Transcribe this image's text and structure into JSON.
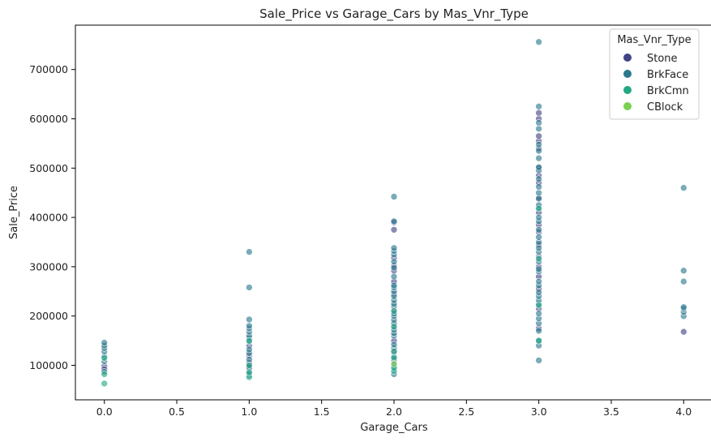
{
  "chart_data": {
    "type": "scatter",
    "title": "Sale_Price vs Garage_Cars by Mas_Vnr_Type",
    "xlabel": "Garage_Cars",
    "ylabel": "Sale_Price",
    "xlim": [
      -0.2,
      4.2
    ],
    "ylim": [
      30000,
      790000
    ],
    "xticks": [
      "0.0",
      "0.5",
      "1.0",
      "1.5",
      "2.0",
      "2.5",
      "3.0",
      "3.5",
      "4.0"
    ],
    "xtick_values": [
      0,
      0.5,
      1,
      1.5,
      2,
      2.5,
      3,
      3.5,
      4
    ],
    "yticks": [
      "100000",
      "200000",
      "300000",
      "400000",
      "500000",
      "600000",
      "700000"
    ],
    "ytick_values": [
      100000,
      200000,
      300000,
      400000,
      500000,
      600000,
      700000
    ],
    "grid": false,
    "legend": {
      "title": "Mas_Vnr_Type",
      "placement": "top-right"
    },
    "series": [
      {
        "name": "Stone",
        "color": "#414487",
        "points": [
          [
            0,
            98000
          ],
          [
            0,
            92000
          ],
          [
            1,
            105000
          ],
          [
            1,
            120000
          ],
          [
            1,
            140000
          ],
          [
            1,
            98000
          ],
          [
            2,
            110000
          ],
          [
            2,
            128000
          ],
          [
            2,
            150000
          ],
          [
            2,
            180000
          ],
          [
            2,
            212000
          ],
          [
            2,
            245000
          ],
          [
            2,
            270000
          ],
          [
            2,
            292000
          ],
          [
            2,
            302000
          ],
          [
            2,
            318000
          ],
          [
            2,
            375000
          ],
          [
            2,
            390000
          ],
          [
            3,
            175000
          ],
          [
            3,
            215000
          ],
          [
            3,
            255000
          ],
          [
            3,
            280000
          ],
          [
            3,
            300000
          ],
          [
            3,
            320000
          ],
          [
            3,
            345000
          ],
          [
            3,
            370000
          ],
          [
            3,
            385000
          ],
          [
            3,
            410000
          ],
          [
            3,
            440000
          ],
          [
            3,
            470000
          ],
          [
            3,
            485000
          ],
          [
            3,
            500000
          ],
          [
            3,
            540000
          ],
          [
            3,
            555000
          ],
          [
            3,
            565000
          ],
          [
            3,
            600000
          ],
          [
            3,
            612000
          ],
          [
            4,
            168000
          ]
        ]
      },
      {
        "name": "BrkFace",
        "color": "#2a788e",
        "points": [
          [
            0,
            118000
          ],
          [
            0,
            128000
          ],
          [
            0,
            135000
          ],
          [
            0,
            140000
          ],
          [
            0,
            146000
          ],
          [
            0,
            87000
          ],
          [
            0,
            108000
          ],
          [
            1,
            80000
          ],
          [
            1,
            88000
          ],
          [
            1,
            95000
          ],
          [
            1,
            112000
          ],
          [
            1,
            125000
          ],
          [
            1,
            132000
          ],
          [
            1,
            148000
          ],
          [
            1,
            155000
          ],
          [
            1,
            160000
          ],
          [
            1,
            168000
          ],
          [
            1,
            175000
          ],
          [
            1,
            180000
          ],
          [
            1,
            193000
          ],
          [
            1,
            258000
          ],
          [
            1,
            330000
          ],
          [
            2,
            82000
          ],
          [
            2,
            92000
          ],
          [
            2,
            100000
          ],
          [
            2,
            118000
          ],
          [
            2,
            135000
          ],
          [
            2,
            142000
          ],
          [
            2,
            160000
          ],
          [
            2,
            165000
          ],
          [
            2,
            172000
          ],
          [
            2,
            185000
          ],
          [
            2,
            192000
          ],
          [
            2,
            200000
          ],
          [
            2,
            205000
          ],
          [
            2,
            220000
          ],
          [
            2,
            225000
          ],
          [
            2,
            232000
          ],
          [
            2,
            240000
          ],
          [
            2,
            250000
          ],
          [
            2,
            258000
          ],
          [
            2,
            262000
          ],
          [
            2,
            280000
          ],
          [
            2,
            298000
          ],
          [
            2,
            310000
          ],
          [
            2,
            325000
          ],
          [
            2,
            332000
          ],
          [
            2,
            338000
          ],
          [
            2,
            392000
          ],
          [
            2,
            442000
          ],
          [
            3,
            110000
          ],
          [
            3,
            140000
          ],
          [
            3,
            150000
          ],
          [
            3,
            170000
          ],
          [
            3,
            185000
          ],
          [
            3,
            195000
          ],
          [
            3,
            205000
          ],
          [
            3,
            225000
          ],
          [
            3,
            232000
          ],
          [
            3,
            240000
          ],
          [
            3,
            248000
          ],
          [
            3,
            262000
          ],
          [
            3,
            270000
          ],
          [
            3,
            290000
          ],
          [
            3,
            295000
          ],
          [
            3,
            310000
          ],
          [
            3,
            330000
          ],
          [
            3,
            338000
          ],
          [
            3,
            350000
          ],
          [
            3,
            360000
          ],
          [
            3,
            375000
          ],
          [
            3,
            392000
          ],
          [
            3,
            400000
          ],
          [
            3,
            420000
          ],
          [
            3,
            425000
          ],
          [
            3,
            438000
          ],
          [
            3,
            450000
          ],
          [
            3,
            462000
          ],
          [
            3,
            478000
          ],
          [
            3,
            495000
          ],
          [
            3,
            502000
          ],
          [
            3,
            520000
          ],
          [
            3,
            535000
          ],
          [
            3,
            548000
          ],
          [
            3,
            580000
          ],
          [
            3,
            592000
          ],
          [
            3,
            625000
          ],
          [
            3,
            756000
          ],
          [
            4,
            200000
          ],
          [
            4,
            208000
          ],
          [
            4,
            215000
          ],
          [
            4,
            218000
          ],
          [
            4,
            270000
          ],
          [
            4,
            292000
          ],
          [
            4,
            460000
          ]
        ]
      },
      {
        "name": "BrkCmn",
        "color": "#22a884",
        "points": [
          [
            0,
            63000
          ],
          [
            0,
            82000
          ],
          [
            0,
            115000
          ],
          [
            1,
            76000
          ],
          [
            1,
            85000
          ],
          [
            1,
            100000
          ],
          [
            1,
            150000
          ],
          [
            2,
            88000
          ],
          [
            2,
            95000
          ],
          [
            2,
            115000
          ],
          [
            2,
            128000
          ],
          [
            2,
            178000
          ],
          [
            2,
            210000
          ],
          [
            3,
            150000
          ],
          [
            3,
            222000
          ],
          [
            3,
            316000
          ],
          [
            3,
            418000
          ]
        ]
      },
      {
        "name": "CBlock",
        "color": "#7ad151",
        "points": [
          [
            2,
            103000
          ]
        ]
      }
    ]
  }
}
